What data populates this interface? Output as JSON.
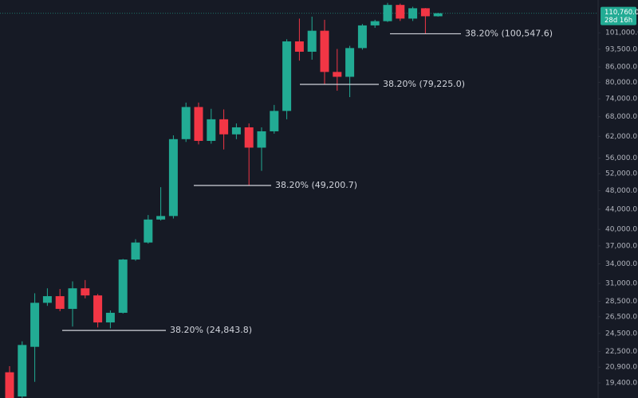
{
  "chart_data": {
    "type": "candlestick",
    "log_scale": true,
    "grid": false,
    "up_color": "#22ab94",
    "down_color": "#f23645",
    "categories": [
      null,
      null,
      null,
      null,
      null,
      null,
      null,
      null,
      null,
      null,
      null,
      null,
      null,
      null,
      null,
      null,
      null,
      null,
      null,
      null,
      null,
      null,
      null,
      null,
      null,
      null,
      null,
      null,
      null,
      null,
      null,
      null,
      null,
      null,
      null
    ],
    "series": [
      {
        "open": [
          20400,
          18200,
          23000,
          28300,
          29200,
          27500,
          30300,
          29300,
          25800,
          27000,
          34700,
          37600,
          41900,
          42600,
          61200,
          71200,
          60700,
          67200,
          62600,
          64700,
          58800,
          63500,
          69900,
          97000,
          92400,
          102000,
          84000,
          82100,
          94000,
          104600,
          106700,
          115200,
          108000,
          113400,
          109200
        ],
        "high": [
          21000,
          23600,
          29600,
          30300,
          30200,
          31300,
          31500,
          29500,
          27300,
          34800,
          38200,
          42800,
          48800,
          62300,
          72700,
          72700,
          70600,
          70400,
          65900,
          65900,
          64700,
          71900,
          98000,
          108000,
          109000,
          107400,
          93600,
          95000,
          105300,
          107400,
          116300,
          115900,
          114200,
          113500,
          111000
        ],
        "low": [
          18000,
          18000,
          19500,
          27900,
          27200,
          25300,
          28900,
          25200,
          25100,
          26900,
          34500,
          37400,
          41700,
          42100,
          60400,
          59700,
          59900,
          58300,
          61200,
          49200,
          52700,
          62800,
          67200,
          88600,
          89000,
          79300,
          76900,
          74600,
          93300,
          103400,
          106300,
          106800,
          106800,
          100500,
          109000
        ],
        "close": [
          18000,
          23200,
          28300,
          29200,
          27500,
          30300,
          29300,
          25800,
          27000,
          34700,
          37600,
          41900,
          42600,
          61200,
          71200,
          60700,
          67200,
          62600,
          64700,
          58800,
          63500,
          69900,
          97000,
          92400,
          102000,
          84000,
          82100,
          94000,
          104600,
          106700,
          115200,
          108000,
          113400,
          109200,
          110760
        ]
      }
    ],
    "ylim": [
      18070,
      117900
    ],
    "yticks": [
      {
        "value": 101000,
        "label": "101,000.0"
      },
      {
        "value": 93500,
        "label": "93,500.0"
      },
      {
        "value": 86000,
        "label": "86,000.0"
      },
      {
        "value": 80000,
        "label": "80,000.0"
      },
      {
        "value": 74000,
        "label": "74,000.0"
      },
      {
        "value": 68000,
        "label": "68,000.0"
      },
      {
        "value": 62000,
        "label": "62,000.0"
      },
      {
        "value": 56000,
        "label": "56,000.0"
      },
      {
        "value": 52000,
        "label": "52,000.0"
      },
      {
        "value": 48000,
        "label": "48,000.0"
      },
      {
        "value": 44000,
        "label": "44,000.0"
      },
      {
        "value": 40000,
        "label": "40,000.0"
      },
      {
        "value": 37000,
        "label": "37,000.0"
      },
      {
        "value": 34000,
        "label": "34,000.0"
      },
      {
        "value": 31000,
        "label": "31,000.0"
      },
      {
        "value": 28500,
        "label": "28,500.0"
      },
      {
        "value": 26500,
        "label": "26,500.0"
      },
      {
        "value": 24500,
        "label": "24,500.0"
      },
      {
        "value": 22500,
        "label": "22,500.0"
      },
      {
        "value": 20900,
        "label": "20,900.0"
      },
      {
        "value": 19400,
        "label": "19,400.0"
      }
    ],
    "price_tag": {
      "value": 110760,
      "label": "110,760.0"
    },
    "countdown": "28d 16h",
    "levels": [
      {
        "value": 24843.8,
        "label": "38.20% (24,843.8)"
      },
      {
        "value": 49200.7,
        "label": "38.20% (49,200.7)"
      },
      {
        "value": 79225,
        "label": "38.20% (79,225.0)"
      },
      {
        "value": 100547.6,
        "label": "38.20% (100,547.6)"
      }
    ]
  }
}
